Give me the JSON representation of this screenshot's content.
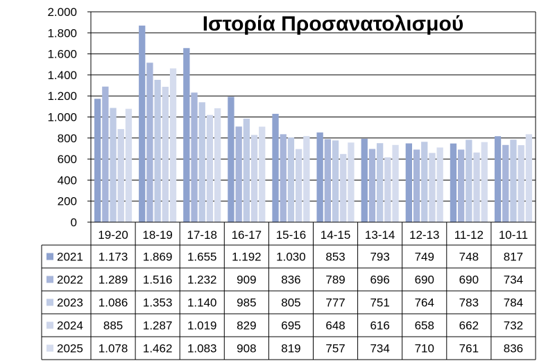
{
  "chart_data": {
    "type": "bar",
    "title": "Ιστορία Προσανατολισμού",
    "categories": [
      "19-20",
      "18-19",
      "17-18",
      "16-17",
      "15-16",
      "14-15",
      "13-14",
      "12-13",
      "11-12",
      "10-11"
    ],
    "series": [
      {
        "name": "2021",
        "color": "#8EA2CF",
        "values": [
          1173,
          1869,
          1655,
          1192,
          1030,
          853,
          793,
          749,
          748,
          817
        ],
        "labels": [
          "1.173",
          "1.869",
          "1.655",
          "1.192",
          "1.030",
          "853",
          "793",
          "749",
          "748",
          "817"
        ]
      },
      {
        "name": "2022",
        "color": "#A7B5DA",
        "values": [
          1289,
          1516,
          1232,
          909,
          836,
          789,
          696,
          690,
          690,
          734
        ],
        "labels": [
          "1.289",
          "1.516",
          "1.232",
          "909",
          "836",
          "789",
          "696",
          "690",
          "690",
          "734"
        ]
      },
      {
        "name": "2023",
        "color": "#BFCBE5",
        "values": [
          1086,
          1353,
          1140,
          985,
          805,
          777,
          751,
          764,
          783,
          784
        ],
        "labels": [
          "1.086",
          "1.353",
          "1.140",
          "985",
          "805",
          "777",
          "751",
          "764",
          "783",
          "784"
        ]
      },
      {
        "name": "2024",
        "color": "#CDD5EA",
        "values": [
          885,
          1287,
          1019,
          829,
          695,
          648,
          616,
          658,
          662,
          732
        ],
        "labels": [
          "885",
          "1.287",
          "1.019",
          "829",
          "695",
          "648",
          "616",
          "658",
          "662",
          "732"
        ]
      },
      {
        "name": "2025",
        "color": "#D5DCEE",
        "values": [
          1078,
          1462,
          1083,
          908,
          819,
          757,
          734,
          710,
          761,
          836
        ],
        "labels": [
          "1.078",
          "1.462",
          "1.083",
          "908",
          "819",
          "757",
          "734",
          "710",
          "761",
          "836"
        ]
      }
    ],
    "ylim": [
      0,
      2000
    ],
    "yticks": [
      0,
      200,
      400,
      600,
      800,
      1000,
      1200,
      1400,
      1600,
      1800,
      2000
    ],
    "ytick_labels": [
      "0",
      "200",
      "400",
      "600",
      "800",
      "1.000",
      "1.200",
      "1.400",
      "1.600",
      "1.800",
      "2.000"
    ],
    "grid": true,
    "legend": "data-table"
  }
}
